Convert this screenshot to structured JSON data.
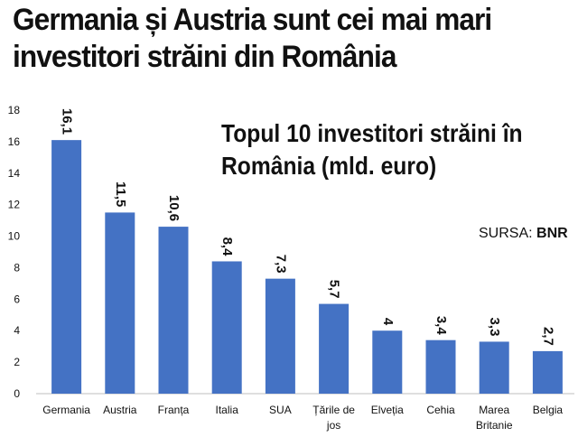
{
  "headline": "Germania și Austria sunt cei mai mari investitori străini din România",
  "source": {
    "label": "SURSA:",
    "value": "BNR"
  },
  "colors": {
    "bar": "#4472C4",
    "axis": "#bfbfbf",
    "text": "#111111"
  },
  "chart_data": {
    "type": "bar",
    "title": "Topul 10 investitori străini în România (mld. euro)",
    "categories": [
      "Germania",
      "Austria",
      "Franța",
      "Italia",
      "SUA",
      "Țările de jos",
      "Elveția",
      "Cehia",
      "Marea Britanie",
      "Belgia"
    ],
    "category_lines": [
      [
        "Germania"
      ],
      [
        "Austria"
      ],
      [
        "Franța"
      ],
      [
        "Italia"
      ],
      [
        "SUA"
      ],
      [
        "Țările de",
        "jos"
      ],
      [
        "Elveția"
      ],
      [
        "Cehia"
      ],
      [
        "Marea",
        "Britanie"
      ],
      [
        "Belgia"
      ]
    ],
    "values": [
      16.1,
      11.5,
      10.6,
      8.4,
      7.3,
      5.7,
      4,
      3.4,
      3.3,
      2.7
    ],
    "value_labels": [
      "16,1",
      "11,5",
      "10,6",
      "8,4",
      "7,3",
      "5,7",
      "4",
      "3,4",
      "3,3",
      "2,7"
    ],
    "ylim": [
      0,
      18
    ],
    "yticks": [
      0,
      2,
      4,
      6,
      8,
      10,
      12,
      14,
      16,
      18
    ],
    "xlabel": "",
    "ylabel": "",
    "grid": false,
    "legend": "none"
  }
}
